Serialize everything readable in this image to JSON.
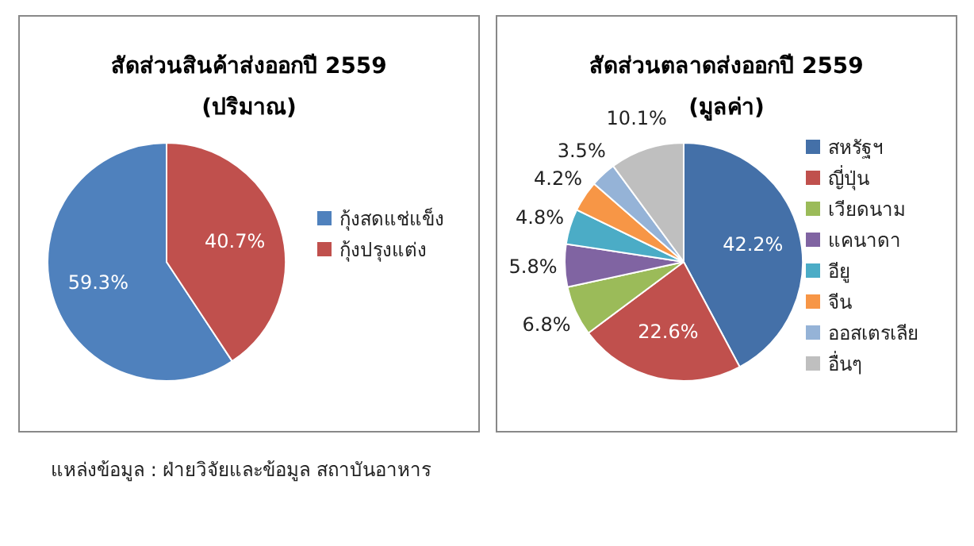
{
  "chart_data": [
    {
      "type": "pie",
      "title": "สัดส่วนสินค้าส่งออกปี 2559",
      "subtitle": "(ปริมาณ)",
      "categories": [
        "กุ้งสดแช่แข็ง",
        "กุ้งปรุงแต่ง"
      ],
      "values": [
        59.3,
        40.7
      ],
      "colors": [
        "#4f81bd",
        "#c0504d"
      ],
      "value_labels": [
        "59.3%",
        "40.7%"
      ],
      "legend": "right",
      "annotations": [
        "แหล่งข้อมูล : ฝ่ายวิจัยและข้อมูล สถาบันอาหาร"
      ]
    },
    {
      "type": "pie",
      "title": "สัดส่วนตลาดส่งออกปี 2559",
      "subtitle": "(มูลค่า)",
      "categories": [
        "สหรัฐฯ",
        "ญี่ปุ่น",
        "เวียดนาม",
        "แคนาดา",
        "อียู",
        "จีน",
        "ออสเตรเลีย",
        "อื่นๆ"
      ],
      "values": [
        42.2,
        22.6,
        6.8,
        5.8,
        4.8,
        4.2,
        3.5,
        10.1
      ],
      "colors": [
        "#4470a8",
        "#c0504d",
        "#9bbb59",
        "#8064a2",
        "#4bacc6",
        "#f79646",
        "#95b3d7",
        "#bfbfbf"
      ],
      "value_labels": [
        "42.2%",
        "22.6%",
        "6.8%",
        "5.8%",
        "4.8%",
        "4.2%",
        "3.5%",
        "10.1%"
      ],
      "legend": "right"
    }
  ]
}
